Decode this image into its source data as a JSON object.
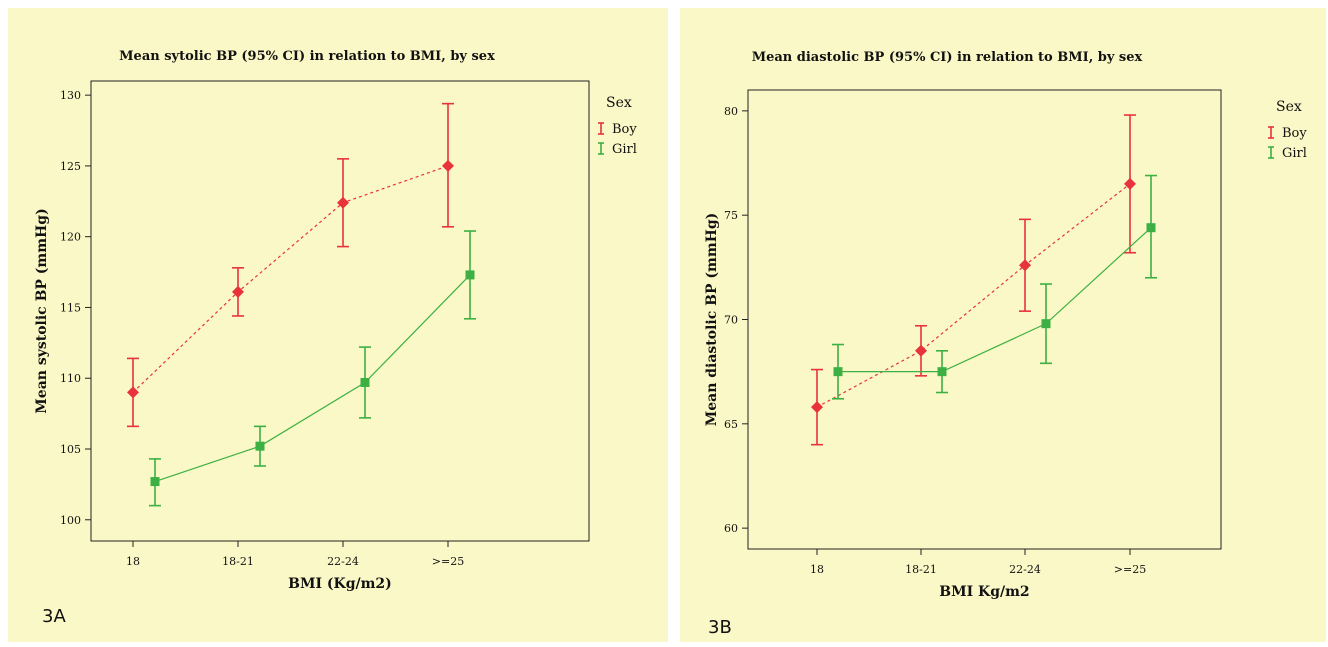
{
  "colors": {
    "boy": "#e8333a",
    "girl": "#3cb043",
    "background": "#fbf8c7",
    "axis": "#222222"
  },
  "chart_data": [
    {
      "type": "scatter",
      "panel_label": "3A",
      "title": "Mean sytolic BP (95% CI) in relation to BMI, by sex",
      "xlabel": "BMI (Kg/m2)",
      "ylabel": "Mean systolic BP (mmHg)",
      "categories": [
        "18",
        "18-21",
        "22-24",
        ">=25"
      ],
      "ylim": [
        98.5,
        131
      ],
      "yticks": [
        100,
        105,
        110,
        115,
        120,
        125,
        130
      ],
      "error_bars": "95% CI",
      "legend": {
        "title": "Sex",
        "position": "top-right",
        "entries": [
          "Boy",
          "Girl"
        ]
      },
      "series": [
        {
          "name": "Boy",
          "color": "#e8333a",
          "marker": "diamond",
          "line": "dashed",
          "values": [
            109.0,
            116.1,
            122.4,
            125.0
          ],
          "ci_lower": [
            106.6,
            114.4,
            119.3,
            120.7
          ],
          "ci_upper": [
            111.4,
            117.8,
            125.5,
            129.4
          ]
        },
        {
          "name": "Girl",
          "color": "#3cb043",
          "marker": "square",
          "line": "solid",
          "values": [
            102.7,
            105.2,
            109.7,
            117.3
          ],
          "ci_lower": [
            101.0,
            103.8,
            107.2,
            114.2
          ],
          "ci_upper": [
            104.3,
            106.6,
            112.2,
            120.4
          ]
        }
      ]
    },
    {
      "type": "scatter",
      "panel_label": "3B",
      "title": "Mean diastolic BP (95% CI) in relation to BMI, by sex",
      "xlabel": "BMI Kg/m2",
      "ylabel": "Mean diastolic BP (mmHg)",
      "categories": [
        "18",
        "18-21",
        "22-24",
        ">=25"
      ],
      "ylim": [
        59,
        81
      ],
      "yticks": [
        60,
        65,
        70,
        75,
        80
      ],
      "error_bars": "95% CI",
      "legend": {
        "title": "Sex",
        "position": "top-right",
        "entries": [
          "Boy",
          "Girl"
        ]
      },
      "series": [
        {
          "name": "Boy",
          "color": "#e8333a",
          "marker": "diamond",
          "line": "dashed",
          "values": [
            65.8,
            68.5,
            72.6,
            76.5
          ],
          "ci_lower": [
            64.0,
            67.3,
            70.4,
            73.2
          ],
          "ci_upper": [
            67.6,
            69.7,
            74.8,
            79.8
          ]
        },
        {
          "name": "Girl",
          "color": "#3cb043",
          "marker": "square",
          "line": "solid",
          "values": [
            67.5,
            67.5,
            69.8,
            74.4
          ],
          "ci_lower": [
            66.2,
            66.5,
            67.9,
            72.0
          ],
          "ci_upper": [
            68.8,
            68.5,
            71.7,
            76.9
          ]
        }
      ]
    }
  ]
}
